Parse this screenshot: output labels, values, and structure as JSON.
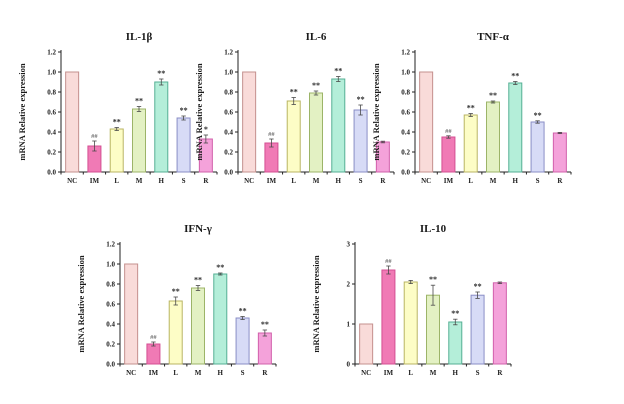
{
  "figure": {
    "background": "#ffffff",
    "categories": [
      "NC",
      "IM",
      "L",
      "M",
      "H",
      "S",
      "R"
    ],
    "ylabel": "mRNA Relative expression",
    "bar_fills": [
      "#f9dbd9",
      "#f07ab5",
      "#fdfdc6",
      "#e3f1c3",
      "#b4eed9",
      "#d7dbf6",
      "#f4a2da"
    ],
    "bar_borders": [
      "#c4908e",
      "#d44f92",
      "#b9b463",
      "#9cb468",
      "#55af94",
      "#8a8ec6",
      "#d160ab"
    ],
    "error_bar_color": "#4a4a4a",
    "axis_color": "#222222",
    "annotation_color_star": "#2b2b2b",
    "annotation_color_hash": "#6e6e6e"
  },
  "chart_data": [
    {
      "type": "bar",
      "title": "IL-1β",
      "xlabel": "",
      "ylabel": "mRNA Relative expression",
      "categories": [
        "NC",
        "IM",
        "L",
        "M",
        "H",
        "S",
        "R"
      ],
      "values": [
        1.0,
        0.26,
        0.43,
        0.63,
        0.9,
        0.54,
        0.33
      ],
      "errors": [
        0,
        0.05,
        0.015,
        0.025,
        0.03,
        0.02,
        0.04
      ],
      "annotations": [
        "",
        "##",
        "**",
        "**",
        "**",
        "**",
        "*"
      ],
      "ylim": [
        0,
        1.2
      ],
      "yticks": [
        "0.0",
        "0.2",
        "0.4",
        "0.6",
        "0.8",
        "1.0",
        "1.2"
      ],
      "grid": false,
      "legend": "none"
    },
    {
      "type": "bar",
      "title": "IL-6",
      "xlabel": "",
      "ylabel": "mRNA Relative expression",
      "categories": [
        "NC",
        "IM",
        "L",
        "M",
        "H",
        "S",
        "R"
      ],
      "values": [
        1.0,
        0.29,
        0.71,
        0.79,
        0.93,
        0.62,
        0.3
      ],
      "errors": [
        0,
        0.04,
        0.035,
        0.02,
        0.025,
        0.05,
        0.008
      ],
      "annotations": [
        "",
        "##",
        "**",
        "**",
        "**",
        "**",
        ""
      ],
      "ylim": [
        0,
        1.2
      ],
      "yticks": [
        "0.0",
        "0.2",
        "0.4",
        "0.6",
        "0.8",
        "1.0",
        "1.2"
      ],
      "grid": false,
      "legend": "none"
    },
    {
      "type": "bar",
      "title": "TNF-α",
      "xlabel": "",
      "ylabel": "mRNA Relative expression",
      "categories": [
        "NC",
        "IM",
        "L",
        "M",
        "H",
        "S",
        "R"
      ],
      "values": [
        1.0,
        0.35,
        0.57,
        0.7,
        0.89,
        0.5,
        0.39
      ],
      "errors": [
        0,
        0.012,
        0.015,
        0.01,
        0.015,
        0.012,
        0.006
      ],
      "annotations": [
        "",
        "##",
        "**",
        "**",
        "**",
        "**",
        ""
      ],
      "ylim": [
        0,
        1.2
      ],
      "yticks": [
        "0.0",
        "0.2",
        "0.4",
        "0.6",
        "0.8",
        "1.0",
        "1.2"
      ],
      "grid": false,
      "legend": "none"
    },
    {
      "type": "bar",
      "title": "IFN-γ",
      "xlabel": "",
      "ylabel": "mRNA Relative expression",
      "categories": [
        "NC",
        "IM",
        "L",
        "M",
        "H",
        "S",
        "R"
      ],
      "values": [
        1.0,
        0.2,
        0.63,
        0.76,
        0.9,
        0.46,
        0.31
      ],
      "errors": [
        0,
        0.02,
        0.04,
        0.025,
        0.01,
        0.015,
        0.03
      ],
      "annotations": [
        "",
        "##",
        "**",
        "**",
        "**",
        "**",
        "**"
      ],
      "ylim": [
        0,
        1.2
      ],
      "yticks": [
        "0.0",
        "0.2",
        "0.4",
        "0.6",
        "0.8",
        "1.0",
        "1.2"
      ],
      "grid": false,
      "legend": "none"
    },
    {
      "type": "bar",
      "title": "IL-10",
      "xlabel": "",
      "ylabel": "mRNA Relative expression",
      "categories": [
        "NC",
        "IM",
        "L",
        "M",
        "H",
        "S",
        "R"
      ],
      "values": [
        1.0,
        2.35,
        2.05,
        1.72,
        1.05,
        1.72,
        2.03
      ],
      "errors": [
        0,
        0.1,
        0.04,
        0.25,
        0.07,
        0.08,
        0.02
      ],
      "annotations": [
        "",
        "##",
        "",
        "**",
        "**",
        "**",
        ""
      ],
      "ylim": [
        0,
        3
      ],
      "yticks": [
        "0",
        "1",
        "2",
        "3"
      ],
      "grid": false,
      "legend": "none"
    }
  ]
}
